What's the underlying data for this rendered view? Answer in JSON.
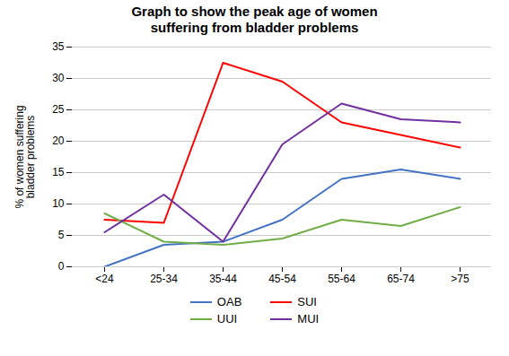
{
  "chart_data": {
    "type": "line",
    "title": "Graph to show the peak age of women\nsuffering from bladder problems",
    "y_label": "% of women suffering\nbladder problems",
    "categories": [
      "<24",
      "25-34",
      "35-44",
      "45-54",
      "55-64",
      "65-74",
      ">75"
    ],
    "series": [
      {
        "name": "OAB",
        "color": "#4472C4",
        "values": [
          0,
          3.5,
          4,
          7.5,
          14,
          15.5,
          14
        ]
      },
      {
        "name": "SUI",
        "color": "#FF0000",
        "values": [
          7.5,
          7,
          32.5,
          29.5,
          23,
          21,
          19
        ]
      },
      {
        "name": "UUI",
        "color": "#70AD47",
        "values": [
          8.5,
          4,
          3.5,
          4.5,
          7.5,
          6.5,
          9.5
        ]
      },
      {
        "name": "MUI",
        "color": "#7030A0",
        "values": [
          5.5,
          11.5,
          4,
          19.5,
          26,
          23.5,
          23
        ]
      }
    ],
    "ylim": [
      0,
      35
    ],
    "yticks": [
      0,
      5,
      10,
      15,
      20,
      25,
      30,
      35
    ],
    "grid": true,
    "legend": "bottom"
  }
}
